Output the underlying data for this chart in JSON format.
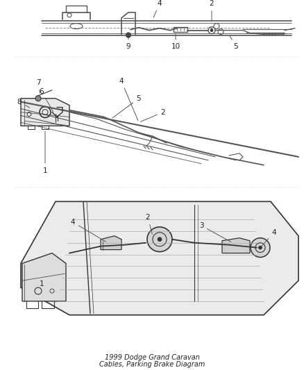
{
  "bg_color": "#ffffff",
  "line_color": "#555555",
  "dark_color": "#333333",
  "label_color": "#222222",
  "label_fontsize": 7.5,
  "fig_width": 4.39,
  "fig_height": 5.33,
  "dpi": 100
}
